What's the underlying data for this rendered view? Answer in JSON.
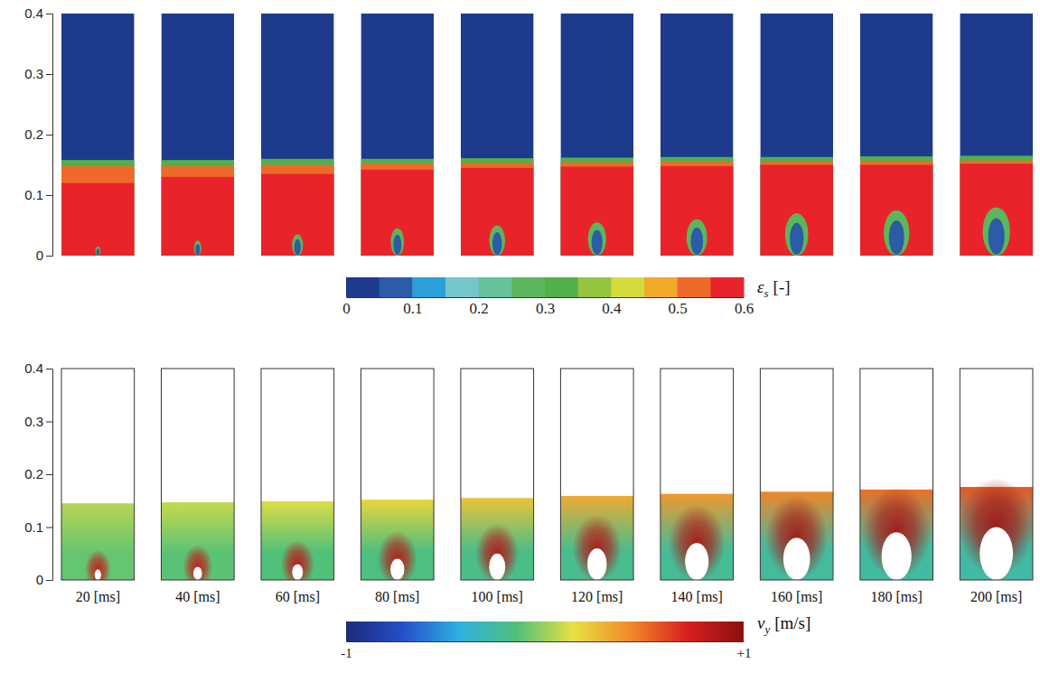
{
  "chart_data": [
    {
      "type": "field_panels",
      "ylim": [
        0,
        0.4
      ],
      "yticks": [
        0,
        0.1,
        0.2,
        0.3,
        0.4
      ],
      "xlim": [
        -0.06,
        0.06
      ],
      "tick_labels": "y",
      "bed_height": [
        0.158,
        0.158,
        0.16,
        0.16,
        0.161,
        0.162,
        0.163,
        0.163,
        0.164,
        0.165
      ],
      "transition_height": [
        0.148,
        0.148,
        0.15,
        0.152,
        0.153,
        0.154,
        0.155,
        0.155,
        0.156,
        0.157
      ],
      "dense_height": [
        0.12,
        0.13,
        0.135,
        0.142,
        0.145,
        0.147,
        0.148,
        0.15,
        0.15,
        0.152
      ],
      "bubble_top": [
        0.015,
        0.025,
        0.035,
        0.045,
        0.05,
        0.055,
        0.06,
        0.07,
        0.075,
        0.08
      ],
      "bubble_width": [
        0.008,
        0.012,
        0.018,
        0.022,
        0.026,
        0.03,
        0.034,
        0.038,
        0.042,
        0.045
      ],
      "levels": {
        "freeboard": 0,
        "surface": 0.3,
        "transition": 0.5,
        "dense": 0.58,
        "halo": 0.25,
        "bubble": 0.05
      },
      "colorbar": {
        "symbol": "ε",
        "subscript": "s",
        "unit": "[-]",
        "range": [
          0,
          0.6
        ],
        "ticks": [
          0,
          0.1,
          0.2,
          0.3,
          0.4,
          0.5,
          0.6
        ],
        "colors": [
          "#1d3a8c",
          "#2c5ba8",
          "#2b9fd9",
          "#74c6cc",
          "#66c29a",
          "#5cb65c",
          "#52b048",
          "#94c53f",
          "#d3dc3c",
          "#f2a92c",
          "#ee6a2b",
          "#e8242a"
        ]
      }
    },
    {
      "type": "particle_panels",
      "categories": [
        "20 [ms]",
        "40 [ms]",
        "60 [ms]",
        "80 [ms]",
        "100 [ms]",
        "120 [ms]",
        "140 [ms]",
        "160 [ms]",
        "180 [ms]",
        "200 [ms]"
      ],
      "ylim": [
        0,
        0.4
      ],
      "yticks": [
        0,
        0.1,
        0.2,
        0.3,
        0.4
      ],
      "xlim": [
        -0.068,
        0.068
      ],
      "tick_labels": "y",
      "bed_height": [
        0.145,
        0.147,
        0.149,
        0.152,
        0.155,
        0.159,
        0.163,
        0.167,
        0.171,
        0.176
      ],
      "bubble_top": [
        0.02,
        0.025,
        0.03,
        0.04,
        0.05,
        0.06,
        0.07,
        0.08,
        0.09,
        0.1
      ],
      "bubble_width": [
        0.012,
        0.016,
        0.02,
        0.026,
        0.03,
        0.036,
        0.044,
        0.05,
        0.056,
        0.062
      ],
      "vy_top": [
        0.05,
        0.08,
        0.12,
        0.18,
        0.24,
        0.32,
        0.38,
        0.44,
        0.5,
        0.56
      ],
      "vy_bottom": [
        -0.1,
        -0.12,
        -0.14,
        -0.16,
        -0.18,
        -0.2,
        -0.22,
        -0.24,
        -0.25,
        -0.26
      ],
      "vy_jet": [
        0.8,
        0.8,
        0.82,
        0.84,
        0.85,
        0.86,
        0.88,
        0.9,
        0.9,
        0.92
      ],
      "colorbar": {
        "symbol": "v",
        "subscript": "y",
        "unit": "[m/s]",
        "range": [
          -1,
          1
        ],
        "ticks": [
          -1,
          {
            "value": 1,
            "label": "+1"
          }
        ]
      }
    }
  ]
}
